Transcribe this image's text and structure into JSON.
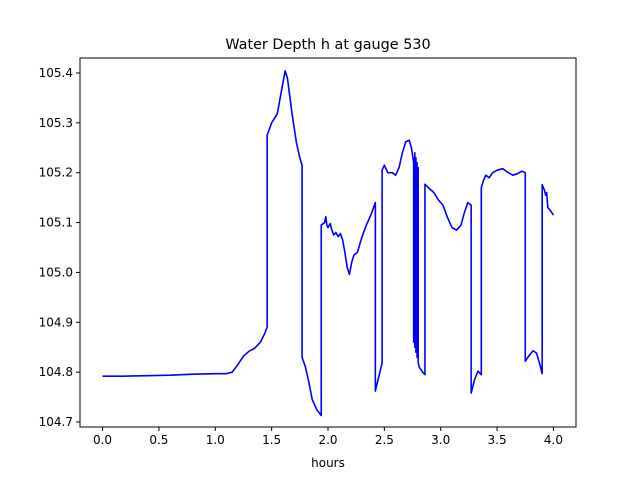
{
  "chart_data": {
    "type": "line",
    "title": "Water Depth h at gauge 530",
    "xlabel": "hours",
    "ylabel": "",
    "xlim": [
      -0.2,
      4.2
    ],
    "ylim": [
      104.69,
      105.43
    ],
    "xticks": [
      0.0,
      0.5,
      1.0,
      1.5,
      2.0,
      2.5,
      3.0,
      3.5,
      4.0
    ],
    "xtick_labels": [
      "0.0",
      "0.5",
      "1.0",
      "1.5",
      "2.0",
      "2.5",
      "3.0",
      "3.5",
      "4.0"
    ],
    "yticks": [
      104.7,
      104.8,
      104.9,
      105.0,
      105.1,
      105.2,
      105.3,
      105.4
    ],
    "ytick_labels": [
      "104.7",
      "104.8",
      "104.9",
      "105.0",
      "105.1",
      "105.2",
      "105.3",
      "105.4"
    ],
    "grid": false,
    "series": [
      {
        "color": "#0000ff",
        "x": [
          0.0,
          0.2,
          0.4,
          0.6,
          0.8,
          1.0,
          1.1,
          1.15,
          1.2,
          1.25,
          1.3,
          1.35,
          1.4,
          1.44,
          1.46,
          1.46,
          1.5,
          1.55,
          1.6,
          1.62,
          1.64,
          1.68,
          1.72,
          1.75,
          1.77,
          1.77,
          1.8,
          1.83,
          1.86,
          1.9,
          1.94,
          1.94,
          1.97,
          1.98,
          1.99,
          2.0,
          2.02,
          2.03,
          2.05,
          2.07,
          2.09,
          2.11,
          2.13,
          2.15,
          2.17,
          2.19,
          2.21,
          2.23,
          2.26,
          2.3,
          2.34,
          2.38,
          2.42,
          2.42,
          2.46,
          2.48,
          2.48,
          2.5,
          2.53,
          2.57,
          2.6,
          2.63,
          2.66,
          2.69,
          2.72,
          2.74,
          2.76,
          2.76,
          2.77,
          2.77,
          2.78,
          2.78,
          2.79,
          2.79,
          2.8,
          2.8,
          2.81,
          2.84,
          2.86,
          2.86,
          2.9,
          2.94,
          2.98,
          3.02,
          3.06,
          3.1,
          3.14,
          3.18,
          3.21,
          3.24,
          3.27,
          3.27,
          3.3,
          3.33,
          3.36,
          3.36,
          3.38,
          3.4,
          3.43,
          3.46,
          3.5,
          3.55,
          3.6,
          3.64,
          3.68,
          3.72,
          3.75,
          3.75,
          3.78,
          3.82,
          3.85,
          3.88,
          3.9,
          3.9,
          3.92,
          3.93,
          3.94,
          3.95,
          3.97,
          4.0
        ],
        "y": [
          104.792,
          104.792,
          104.793,
          104.794,
          104.796,
          104.797,
          104.797,
          104.8,
          104.815,
          104.832,
          104.842,
          104.848,
          104.86,
          104.878,
          104.89,
          105.275,
          105.3,
          105.318,
          105.38,
          105.404,
          105.39,
          105.32,
          105.26,
          105.23,
          105.215,
          104.83,
          104.81,
          104.78,
          104.745,
          104.725,
          104.713,
          105.095,
          105.1,
          105.112,
          105.095,
          105.09,
          105.098,
          105.088,
          105.075,
          105.08,
          105.072,
          105.078,
          105.065,
          105.04,
          105.01,
          104.996,
          105.02,
          105.035,
          105.04,
          105.07,
          105.095,
          105.115,
          105.14,
          104.762,
          104.8,
          104.818,
          105.205,
          105.215,
          105.2,
          105.2,
          105.195,
          105.21,
          105.24,
          105.262,
          105.265,
          105.25,
          105.22,
          104.86,
          105.24,
          104.85,
          105.23,
          104.84,
          105.22,
          104.83,
          105.21,
          104.82,
          104.81,
          104.8,
          104.795,
          105.177,
          105.168,
          105.16,
          105.145,
          105.135,
          105.11,
          105.09,
          105.085,
          105.095,
          105.12,
          105.14,
          105.135,
          104.758,
          104.785,
          104.802,
          104.795,
          105.17,
          105.185,
          105.195,
          105.19,
          105.2,
          105.205,
          105.208,
          105.2,
          105.195,
          105.198,
          105.203,
          105.2,
          104.822,
          104.832,
          104.843,
          104.838,
          104.815,
          104.797,
          105.176,
          105.165,
          105.155,
          105.16,
          105.13,
          105.125,
          105.115
        ]
      }
    ]
  }
}
